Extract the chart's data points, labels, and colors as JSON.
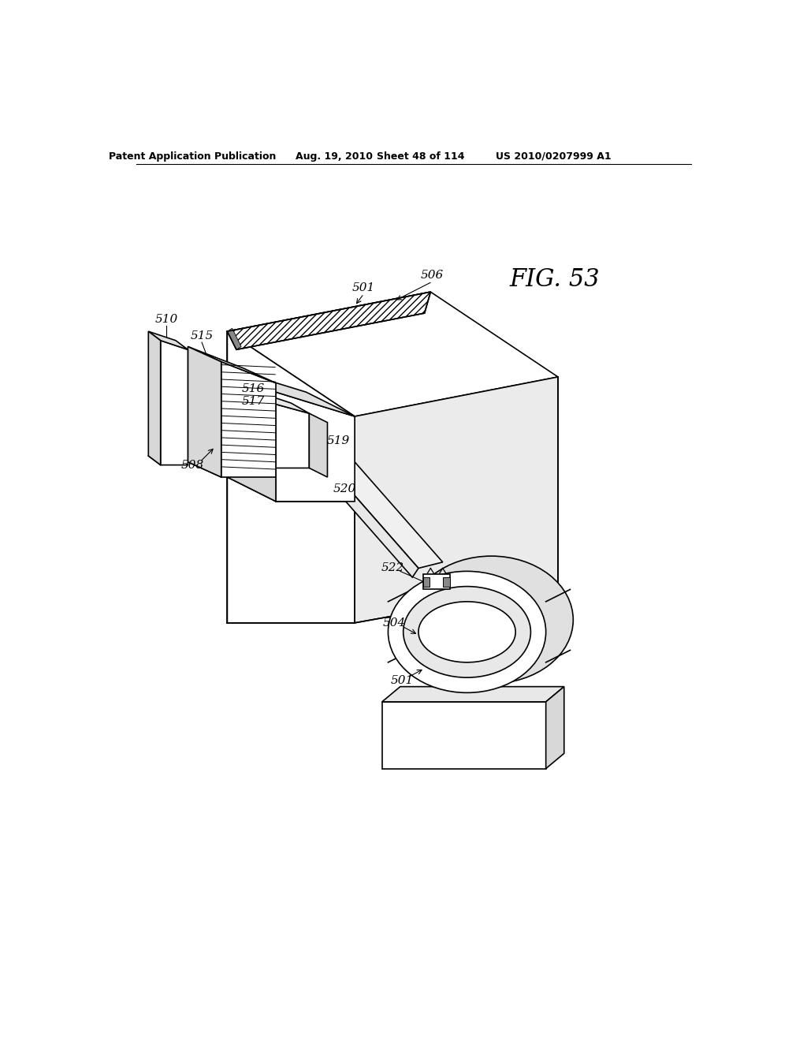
{
  "bg_color": "#ffffff",
  "header_text": "Patent Application Publication",
  "header_date": "Aug. 19, 2010",
  "header_sheet": "Sheet 48 of 114",
  "header_patent": "US 2010/0207999 A1",
  "fig_label": "FIG. 53",
  "lw_main": 1.2,
  "lw_thin": 0.8,
  "labels": {
    "501a": "501",
    "506": "506",
    "510": "510",
    "515": "515",
    "516": "516",
    "517": "517",
    "508": "508",
    "519": "519",
    "520": "520",
    "522": "522",
    "504": "504",
    "501b": "501"
  }
}
